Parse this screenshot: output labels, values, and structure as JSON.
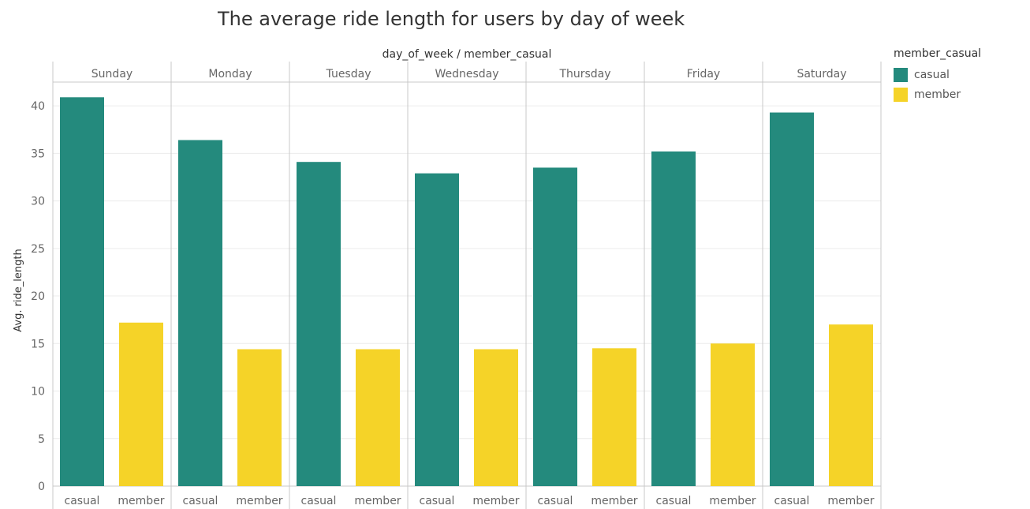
{
  "colors": {
    "casual": "#248a7d",
    "member": "#f5d328"
  },
  "chart_data": {
    "type": "bar",
    "title": "The average ride length for users by day of week",
    "header_label": "day_of_week  /  member_casual",
    "xlabel": "",
    "ylabel": "Avg. ride_length",
    "ylim": [
      0,
      42.5
    ],
    "yticks": [
      0,
      5,
      10,
      15,
      20,
      25,
      30,
      35,
      40
    ],
    "grid": true,
    "legend_position": "right",
    "legend_title": "member_casual",
    "categories": [
      "Sunday",
      "Monday",
      "Tuesday",
      "Wednesday",
      "Thursday",
      "Friday",
      "Saturday"
    ],
    "series": [
      {
        "name": "casual",
        "values": [
          40.9,
          36.4,
          34.1,
          32.9,
          33.5,
          35.2,
          39.3
        ]
      },
      {
        "name": "member",
        "values": [
          17.2,
          14.4,
          14.4,
          14.4,
          14.5,
          15.0,
          17.0
        ]
      }
    ]
  }
}
